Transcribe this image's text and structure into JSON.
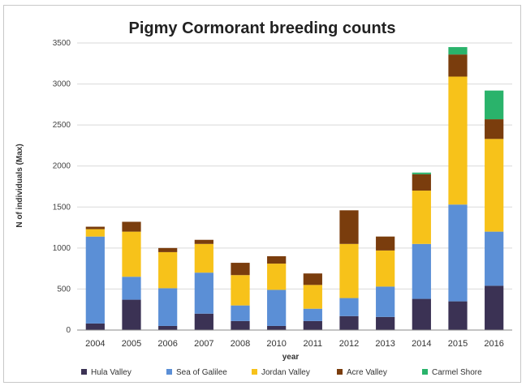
{
  "chart_data": {
    "type": "bar",
    "stacked": true,
    "title": "Pigmy Cormorant breeding counts",
    "xlabel": "year",
    "ylabel": "N of individuals (Max)",
    "ylim": [
      0,
      3500
    ],
    "yticks": [
      0,
      500,
      1000,
      1500,
      2000,
      2500,
      3000,
      3500
    ],
    "grid": true,
    "legend_position": "bottom",
    "categories": [
      "2004",
      "2005",
      "2006",
      "2007",
      "2008",
      "2010",
      "2011",
      "2012",
      "2013",
      "2014",
      "2015",
      "2016"
    ],
    "series": [
      {
        "name": "Hula Valley",
        "color": "#3b3254",
        "values": [
          80,
          370,
          50,
          200,
          110,
          50,
          110,
          170,
          160,
          380,
          350,
          540
        ]
      },
      {
        "name": "Sea of Galilee",
        "color": "#5b8fd6",
        "values": [
          1060,
          280,
          460,
          500,
          190,
          440,
          150,
          220,
          370,
          670,
          1180,
          660
        ]
      },
      {
        "name": "Jordan Valley",
        "color": "#f7c21a",
        "values": [
          90,
          550,
          440,
          350,
          370,
          320,
          290,
          660,
          440,
          650,
          1560,
          1130
        ]
      },
      {
        "name": "Acre Valley",
        "color": "#7a3d0d",
        "values": [
          30,
          120,
          50,
          50,
          150,
          90,
          140,
          410,
          170,
          200,
          270,
          240
        ]
      },
      {
        "name": "Carmel Shore",
        "color": "#2ab36b",
        "values": [
          0,
          0,
          0,
          0,
          0,
          0,
          0,
          0,
          0,
          20,
          90,
          350
        ]
      }
    ]
  }
}
